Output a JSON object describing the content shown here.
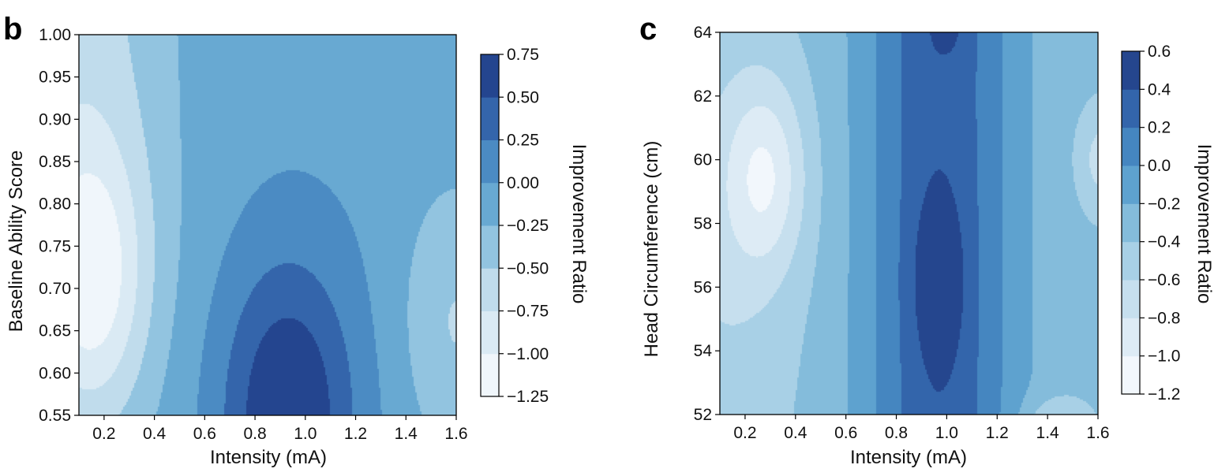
{
  "chart_data": [
    {
      "panel_label": "b",
      "type": "contour",
      "xlabel": "Intensity (mA)",
      "ylabel": "Baseline Ability Score",
      "xlim": [
        0.1,
        1.6
      ],
      "ylim": [
        0.55,
        1.0
      ],
      "x_ticks": [
        0.2,
        0.4,
        0.6,
        0.8,
        1.0,
        1.2,
        1.4,
        1.6
      ],
      "x_tick_labels": [
        "0.2",
        "0.4",
        "0.6",
        "0.8",
        "1.0",
        "1.2",
        "1.4",
        "1.6"
      ],
      "y_ticks": [
        0.55,
        0.6,
        0.65,
        0.7,
        0.75,
        0.8,
        0.85,
        0.9,
        0.95,
        1.0
      ],
      "y_tick_labels": [
        "0.55",
        "0.60",
        "0.65",
        "0.70",
        "0.75",
        "0.80",
        "0.85",
        "0.90",
        "0.95",
        "1.00"
      ],
      "colorbar": {
        "label": "Improvement Ratio",
        "levels": [
          -1.25,
          -1.0,
          -0.75,
          -0.5,
          -0.25,
          0.0,
          0.25,
          0.5,
          0.75
        ],
        "tick_labels": [
          "0.75",
          "0.50",
          "0.25",
          "0.00",
          "−0.25",
          "−0.50",
          "−0.75",
          "−1.00",
          "−1.25"
        ],
        "colors": [
          "#f0f6fb",
          "#daeaf4",
          "#c0dcec",
          "#92c4e0",
          "#68a9d2",
          "#4b8bc3",
          "#3465ab",
          "#24458f"
        ]
      },
      "field": {
        "base": -0.06,
        "peaks": [
          {
            "x": 0.93,
            "y": 0.55,
            "sx": 0.26,
            "sy": 0.18,
            "amp": 0.85
          },
          {
            "x": 0.15,
            "y": 0.71,
            "sx": 0.22,
            "sy": 0.16,
            "amp": -0.8
          },
          {
            "x": 0.1,
            "y": 0.95,
            "sx": 0.38,
            "sy": 0.45,
            "amp": -0.55
          },
          {
            "x": 1.6,
            "y": 0.66,
            "sx": 0.22,
            "sy": 0.17,
            "amp": -0.45
          }
        ]
      }
    },
    {
      "panel_label": "c",
      "type": "contour",
      "xlabel": "Intensity (mA)",
      "ylabel": "Head Circumference (cm)",
      "xlim": [
        0.1,
        1.6
      ],
      "ylim": [
        52,
        64
      ],
      "x_ticks": [
        0.2,
        0.4,
        0.6,
        0.8,
        1.0,
        1.2,
        1.4,
        1.6
      ],
      "x_tick_labels": [
        "0.2",
        "0.4",
        "0.6",
        "0.8",
        "1.0",
        "1.2",
        "1.4",
        "1.6"
      ],
      "y_ticks": [
        52,
        54,
        56,
        58,
        60,
        62,
        64
      ],
      "y_tick_labels": [
        "52",
        "54",
        "56",
        "58",
        "60",
        "62",
        "64"
      ],
      "colorbar": {
        "label": "Improvement Ratio",
        "levels": [
          -1.2,
          -1.0,
          -0.8,
          -0.6,
          -0.4,
          -0.2,
          0.0,
          0.2,
          0.4,
          0.6
        ],
        "tick_labels": [
          "0.6",
          "0.4",
          "0.2",
          "0.0",
          "−0.2",
          "−0.4",
          "−0.6",
          "−0.8",
          "−1.0",
          "−1.2"
        ],
        "colors": [
          "#f2f7fc",
          "#ddebf5",
          "#c6dfee",
          "#a8d0e6",
          "#84bcdb",
          "#5ea2cf",
          "#4586c0",
          "#3365ab",
          "#25468e"
        ]
      },
      "field": {
        "base": -0.35,
        "ridge": {
          "x": 0.97,
          "sx": 0.3,
          "amp": 0.7
        },
        "peaks": [
          {
            "x": 0.97,
            "y": 56.2,
            "sx": 0.1,
            "sy": 2.6,
            "amp": 0.3
          },
          {
            "x": 1.0,
            "y": 64.2,
            "sx": 0.07,
            "sy": 0.9,
            "amp": 0.15
          },
          {
            "x": 0.28,
            "y": 59.5,
            "sx": 0.16,
            "sy": 3.0,
            "amp": -0.55
          },
          {
            "x": 0.1,
            "y": 57.0,
            "sx": 0.3,
            "sy": 8.0,
            "amp": -0.25
          },
          {
            "x": 1.62,
            "y": 60.0,
            "sx": 0.1,
            "sy": 1.6,
            "amp": -0.35
          },
          {
            "x": 1.43,
            "y": 51.6,
            "sx": 0.13,
            "sy": 0.9,
            "amp": -0.35
          }
        ]
      }
    }
  ]
}
